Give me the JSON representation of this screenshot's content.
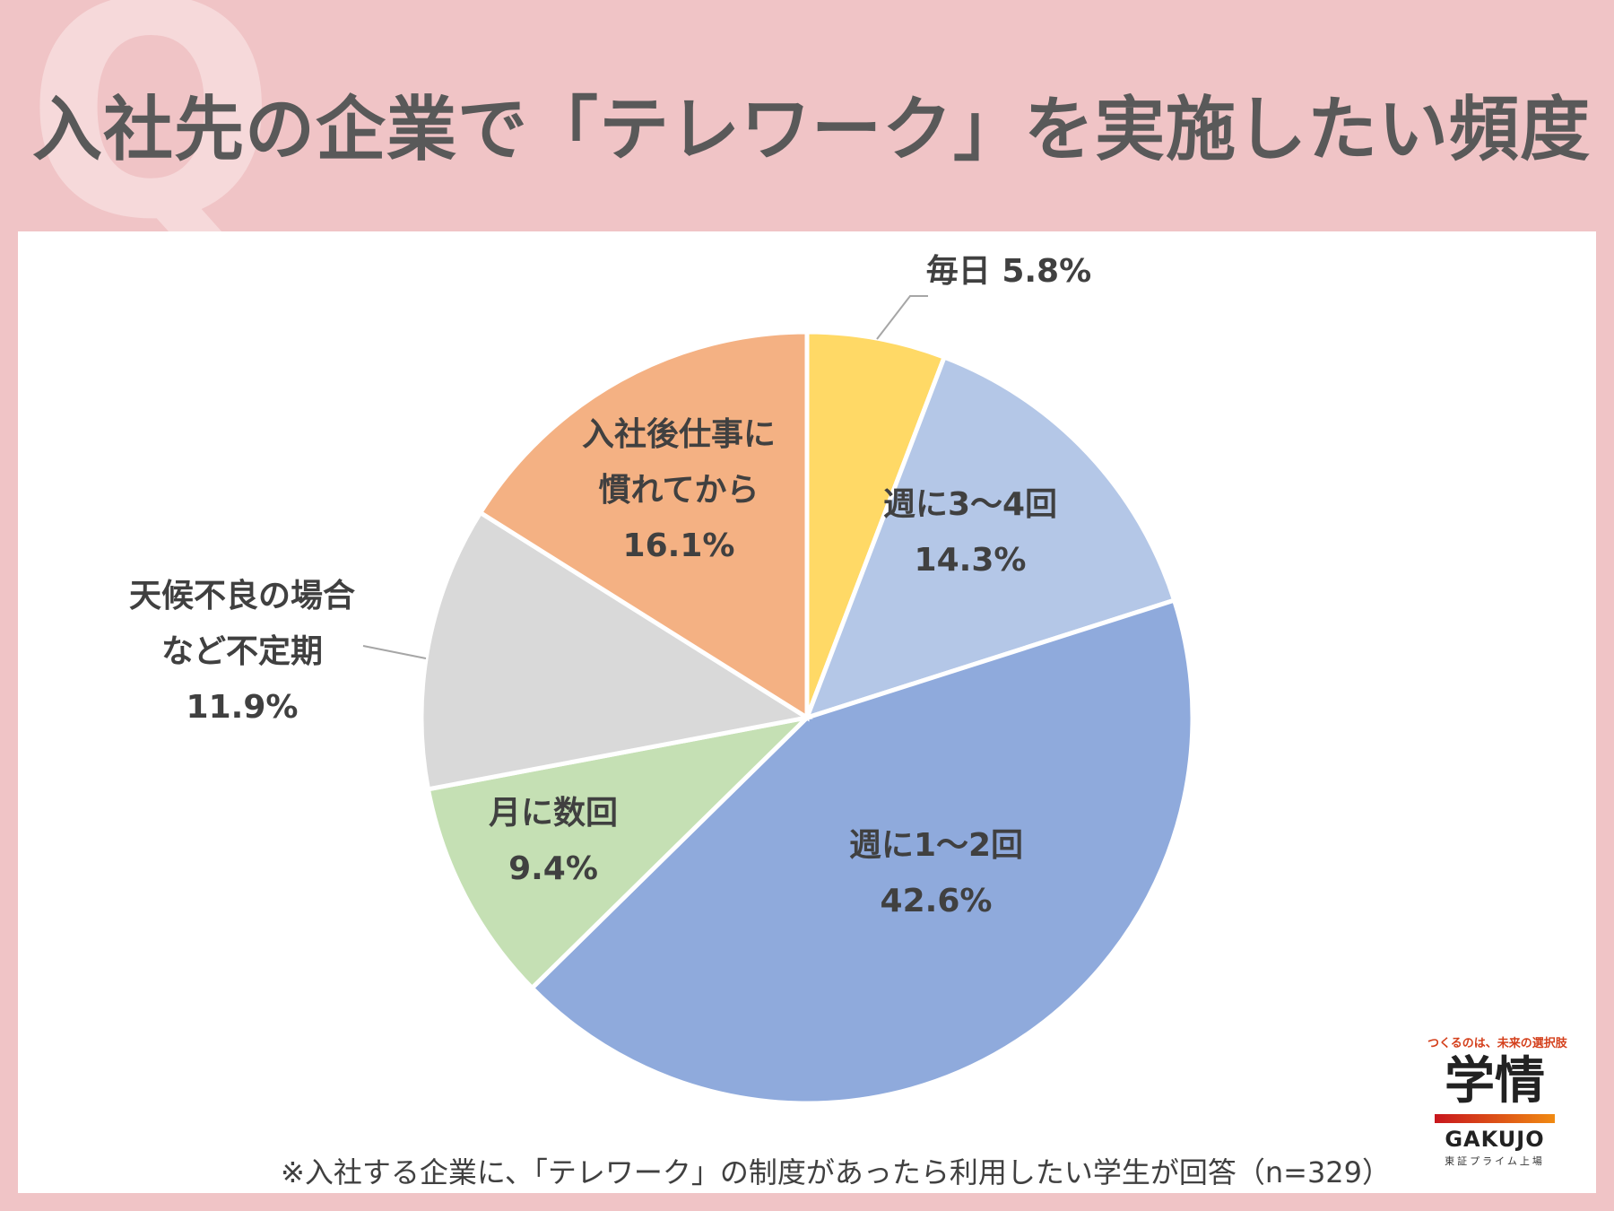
{
  "title": "入社先の企業で「テレワーク」を実施したい頻度",
  "q_mark": "Q",
  "footnote": "※入社する企業に、「テレワーク」の制度があったら利用したい学生が回答（n=329）",
  "logo": {
    "tagline": "つくるのは、未来の選択肢",
    "name": "学情",
    "name_en": "GAKUJO",
    "sub": "東証プライム上場"
  },
  "chart_data": {
    "type": "pie",
    "start_angle_deg": 0,
    "direction": "clockwise",
    "slices": [
      {
        "label": [
          "毎日 5.8%"
        ],
        "value": 5.8,
        "color": "#ffd966"
      },
      {
        "label": [
          "週に3～4回",
          "14.3%"
        ],
        "value": 14.3,
        "color": "#b4c7e7"
      },
      {
        "label": [
          "週に1～2回",
          "42.6%"
        ],
        "value": 42.6,
        "color": "#8faadc"
      },
      {
        "label": [
          "月に数回",
          "9.4%"
        ],
        "value": 9.4,
        "color": "#c5e0b4"
      },
      {
        "label": [
          "天候不良の場合",
          "など不定期",
          "11.9%"
        ],
        "value": 11.9,
        "color": "#d9d9d9"
      },
      {
        "label": [
          "入社後仕事に",
          "慣れてから",
          "16.1%"
        ],
        "value": 16.1,
        "color": "#f4b183"
      }
    ]
  }
}
